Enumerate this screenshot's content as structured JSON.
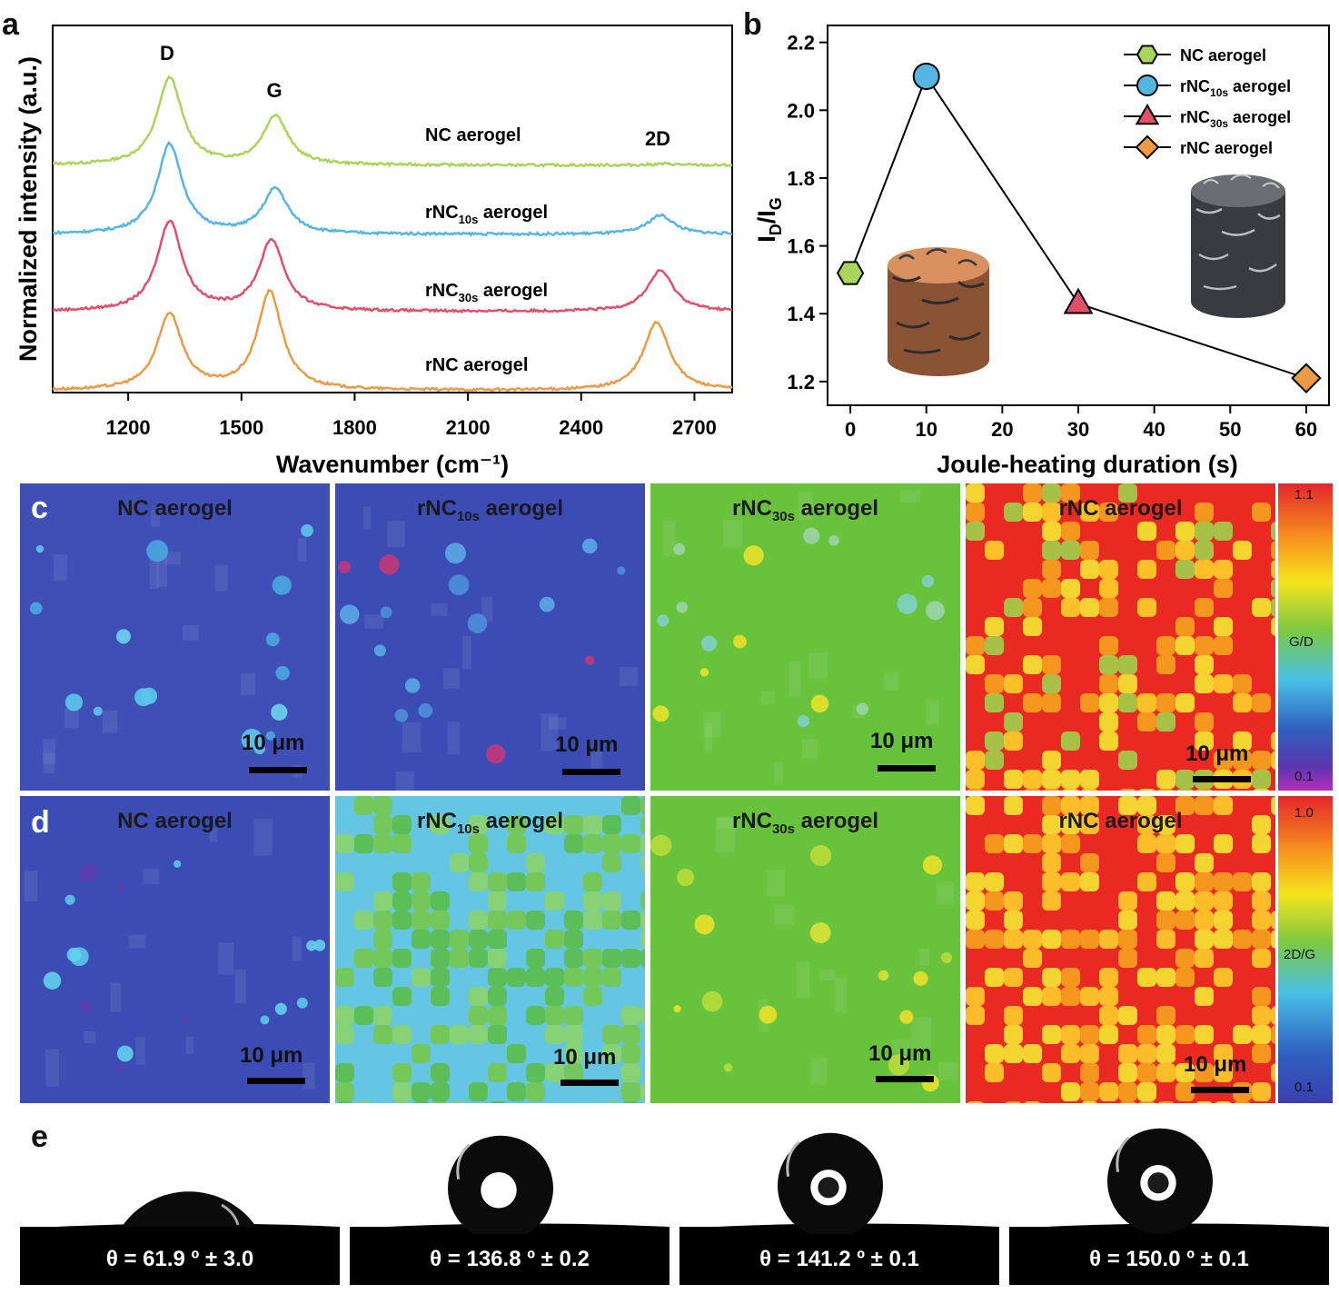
{
  "panels": {
    "a": "a",
    "b": "b",
    "c": "c",
    "d": "d",
    "e": "e"
  },
  "raman": {
    "type": "line",
    "xlabel": "Wavenumber (cm⁻¹)",
    "ylabel": "Normalized intensity (a.u.)",
    "xlim": [
      1000,
      2800
    ],
    "x_ticks": [
      "1200",
      "1500",
      "1800",
      "2100",
      "2400",
      "2700"
    ],
    "peaks": {
      "D": "D",
      "G": "G",
      "2D": "2D"
    },
    "series": [
      {
        "name": "NC aerogel",
        "label_main": "NC aerogel",
        "label_sub": "",
        "label_rest": "",
        "color": "#a9d65a",
        "peaks": [
          {
            "x": 1310,
            "h": 0.64
          },
          {
            "x": 1590,
            "h": 0.36
          },
          {
            "x": 2620,
            "h": 0.01
          }
        ]
      },
      {
        "name": "rNC10s aerogel",
        "label_main": "rNC",
        "label_sub": "10s",
        "label_rest": " aerogel",
        "color": "#55b6e4",
        "peaks": [
          {
            "x": 1310,
            "h": 0.66
          },
          {
            "x": 1590,
            "h": 0.33
          },
          {
            "x": 2610,
            "h": 0.14
          }
        ]
      },
      {
        "name": "rNC30s aerogel",
        "label_main": "rNC",
        "label_sub": "30s",
        "label_rest": " aerogel",
        "color": "#e0506a",
        "peaks": [
          {
            "x": 1310,
            "h": 0.66
          },
          {
            "x": 1580,
            "h": 0.52
          },
          {
            "x": 2610,
            "h": 0.3
          }
        ]
      },
      {
        "name": "rNC aerogel",
        "label_main": "rNC aerogel",
        "label_sub": "",
        "label_rest": "",
        "color": "#ec9b44",
        "peaks": [
          {
            "x": 1310,
            "h": 0.56
          },
          {
            "x": 1575,
            "h": 0.72
          },
          {
            "x": 2600,
            "h": 0.5
          }
        ]
      }
    ]
  },
  "ratio": {
    "type": "line",
    "xlabel": "Joule-heating duration (s)",
    "ylabel_main": "I",
    "ylabel_sub1": "D",
    "ylabel_slash": "/I",
    "ylabel_sub2": "G",
    "xlim": [
      -3,
      63
    ],
    "ylim": [
      1.13,
      2.25
    ],
    "x_ticks": [
      "0",
      "10",
      "20",
      "30",
      "40",
      "50",
      "60"
    ],
    "y_ticks": [
      "1.2",
      "1.4",
      "1.6",
      "1.8",
      "2.0",
      "2.2"
    ],
    "points": [
      {
        "x": 0,
        "y": 1.52,
        "label_main": "NC aerogel",
        "label_sub": "",
        "label_rest": "",
        "color": "#a9d65a",
        "marker": "hexagon"
      },
      {
        "x": 10,
        "y": 2.1,
        "label_main": "rNC",
        "label_sub": "10s",
        "label_rest": " aerogel",
        "color": "#55b6e4",
        "marker": "circle"
      },
      {
        "x": 30,
        "y": 1.43,
        "label_main": "rNC",
        "label_sub": "30s",
        "label_rest": " aerogel",
        "color": "#e0506a",
        "marker": "triangle"
      },
      {
        "x": 60,
        "y": 1.21,
        "label_main": "rNC aerogel",
        "label_sub": "",
        "label_rest": "",
        "color": "#ec9b44",
        "marker": "diamond"
      }
    ]
  },
  "maps": {
    "scale": "10 μm",
    "row_c": {
      "colorbar_max": "1.1",
      "colorbar_min": "0.1",
      "colorbar_label": "G/D",
      "titles": [
        {
          "main": "NC aerogel",
          "sub": "",
          "rest": ""
        },
        {
          "main": "rNC",
          "sub": "10s",
          "rest": " aerogel"
        },
        {
          "main": "rNC",
          "sub": "30s",
          "rest": " aerogel"
        },
        {
          "main": "rNC aerogel",
          "sub": "",
          "rest": ""
        }
      ]
    },
    "row_d": {
      "colorbar_max": "1.0",
      "colorbar_min": "0.1",
      "colorbar_label": "2D/G",
      "titles": [
        {
          "main": "NC aerogel",
          "sub": "",
          "rest": ""
        },
        {
          "main": "rNC",
          "sub": "10s",
          "rest": " aerogel"
        },
        {
          "main": "rNC",
          "sub": "30s",
          "rest": " aerogel"
        },
        {
          "main": "rNC aerogel",
          "sub": "",
          "rest": ""
        }
      ]
    }
  },
  "contact_angles": [
    {
      "label": "θ = 61.9 º ± 3.0",
      "angle": 61.9
    },
    {
      "label": "θ = 136.8 º ± 0.2",
      "angle": 136.8
    },
    {
      "label": "θ = 141.2 º ± 0.1",
      "angle": 141.2
    },
    {
      "label": "θ = 150.0 º ± 0.1",
      "angle": 150.0
    }
  ]
}
